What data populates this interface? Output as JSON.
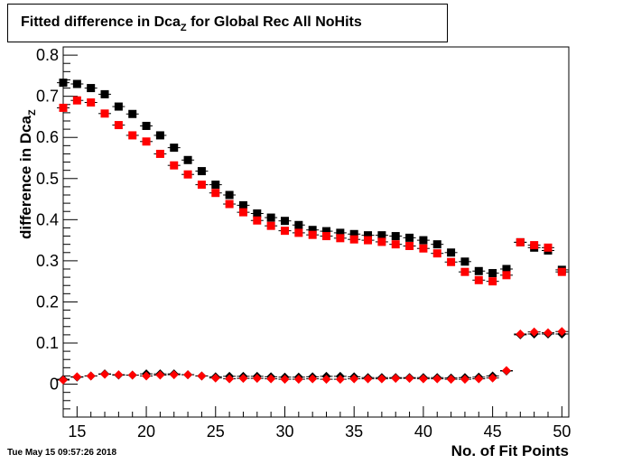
{
  "title": {
    "main": "Fitted difference in Dca",
    "sub": "Z",
    "rest": " for Global Rec All NoHits"
  },
  "timestamp": "Tue May 15 09:57:26 2018",
  "chart_data": {
    "type": "scatter",
    "title": "Fitted difference in Dca_Z for Global Rec All NoHits",
    "xlabel": "No. of Fit Points",
    "ylabel": {
      "main": "difference in Dca",
      "sub": "Z"
    },
    "xlim": [
      14,
      50.5
    ],
    "ylim": [
      -0.08,
      0.82
    ],
    "xticks": [
      15,
      20,
      25,
      30,
      35,
      40,
      45,
      50
    ],
    "yticks": [
      0,
      0.1,
      0.2,
      0.3,
      0.4,
      0.5,
      0.6,
      0.7,
      0.8
    ],
    "grid": false,
    "series": [
      {
        "marker": "square",
        "color": "#000000",
        "x": [
          14,
          15,
          16,
          17,
          18,
          19,
          20,
          21,
          22,
          23,
          24,
          25,
          26,
          27,
          28,
          29,
          30,
          31,
          32,
          33,
          34,
          35,
          36,
          37,
          38,
          39,
          40,
          41,
          42,
          43,
          44,
          45,
          46,
          47,
          48,
          49,
          50
        ],
        "y": [
          0.733,
          0.73,
          0.72,
          0.705,
          0.675,
          0.657,
          0.628,
          0.605,
          0.575,
          0.545,
          0.518,
          0.485,
          0.46,
          0.435,
          0.415,
          0.405,
          0.397,
          0.387,
          0.375,
          0.372,
          0.368,
          0.365,
          0.362,
          0.362,
          0.36,
          0.356,
          0.35,
          0.34,
          0.32,
          0.298,
          0.275,
          0.27,
          0.28,
          0.345,
          0.332,
          0.325,
          0.278
        ]
      },
      {
        "marker": "square",
        "color": "#ff0000",
        "x": [
          14,
          15,
          16,
          17,
          18,
          19,
          20,
          21,
          22,
          23,
          24,
          25,
          26,
          27,
          28,
          29,
          30,
          31,
          32,
          33,
          34,
          35,
          36,
          37,
          38,
          39,
          40,
          41,
          42,
          43,
          44,
          45,
          46,
          47,
          48,
          49,
          50
        ],
        "y": [
          0.672,
          0.69,
          0.685,
          0.658,
          0.63,
          0.605,
          0.59,
          0.56,
          0.532,
          0.51,
          0.485,
          0.465,
          0.438,
          0.418,
          0.398,
          0.385,
          0.373,
          0.368,
          0.363,
          0.36,
          0.355,
          0.352,
          0.35,
          0.346,
          0.34,
          0.336,
          0.33,
          0.318,
          0.297,
          0.273,
          0.253,
          0.25,
          0.265,
          0.345,
          0.338,
          0.332,
          0.273
        ]
      },
      {
        "marker": "diamond",
        "color": "#000000",
        "x": [
          14,
          15,
          16,
          17,
          18,
          19,
          20,
          21,
          22,
          23,
          24,
          25,
          26,
          27,
          28,
          29,
          30,
          31,
          32,
          33,
          34,
          35,
          36,
          37,
          38,
          39,
          40,
          41,
          42,
          43,
          44,
          45,
          46,
          47,
          48,
          49,
          50
        ],
        "y": [
          0.012,
          0.017,
          0.02,
          0.025,
          0.022,
          0.022,
          0.025,
          0.025,
          0.025,
          0.023,
          0.02,
          0.018,
          0.019,
          0.019,
          0.019,
          0.018,
          0.017,
          0.017,
          0.018,
          0.019,
          0.019,
          0.018,
          0.016,
          0.016,
          0.016,
          0.016,
          0.016,
          0.016,
          0.015,
          0.016,
          0.017,
          0.02,
          0.032,
          0.12,
          0.122,
          0.122,
          0.122
        ]
      },
      {
        "marker": "diamond",
        "color": "#ff0000",
        "x": [
          14,
          15,
          16,
          17,
          18,
          19,
          20,
          21,
          22,
          23,
          24,
          25,
          26,
          27,
          28,
          29,
          30,
          31,
          32,
          33,
          34,
          35,
          36,
          37,
          38,
          39,
          40,
          41,
          42,
          43,
          44,
          45,
          46,
          47,
          48,
          49,
          50
        ],
        "y": [
          0.01,
          0.018,
          0.02,
          0.024,
          0.023,
          0.022,
          0.02,
          0.022,
          0.023,
          0.023,
          0.02,
          0.015,
          0.013,
          0.014,
          0.014,
          0.013,
          0.012,
          0.012,
          0.013,
          0.012,
          0.012,
          0.013,
          0.013,
          0.013,
          0.014,
          0.014,
          0.013,
          0.013,
          0.012,
          0.012,
          0.013,
          0.015,
          0.033,
          0.122,
          0.127,
          0.125,
          0.128
        ]
      }
    ]
  }
}
